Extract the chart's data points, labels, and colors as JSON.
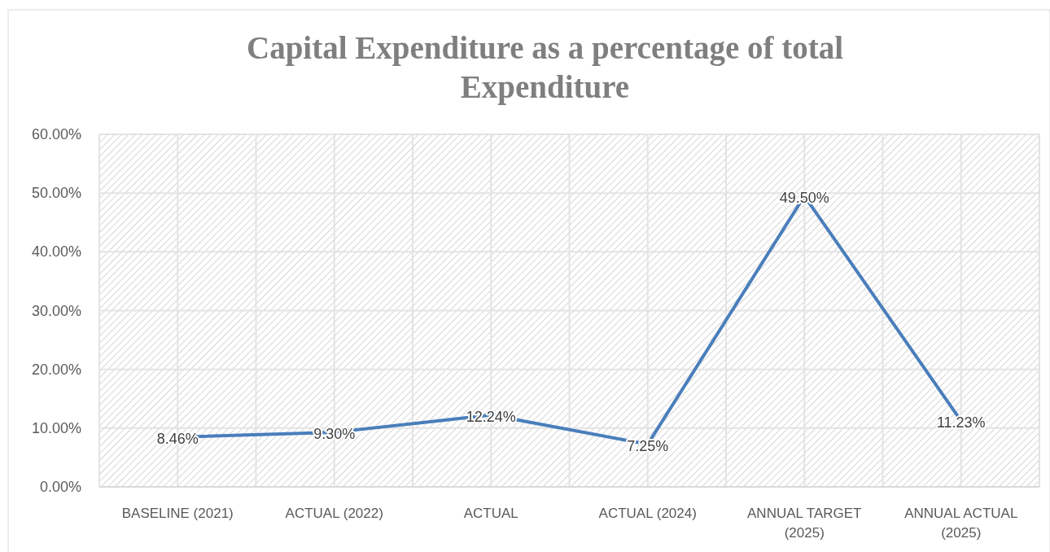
{
  "chart_data": {
    "type": "line",
    "title": "Capital Expenditure as a percentage of total Expenditure",
    "categories": [
      "BASELINE (2021)",
      "ACTUAL (2022)",
      "ACTUAL",
      "ACTUAL (2024)",
      "ANNUAL TARGET (2025)",
      "ANNUAL ACTUAL (2025)"
    ],
    "series": [
      {
        "color": "#4a7ebb",
        "values": [
          8.46,
          9.3,
          12.24,
          7.25,
          49.5,
          11.23
        ],
        "value_labels": [
          "8.46%",
          "9.30%",
          "12.24%",
          "7.25%",
          "49.50%",
          "11.23%"
        ]
      }
    ],
    "ylim": [
      0,
      60
    ],
    "yticks": [
      {
        "value": 0,
        "label": "0.00%"
      },
      {
        "value": 10,
        "label": "10.00%"
      },
      {
        "value": 20,
        "label": "20.00%"
      },
      {
        "value": 30,
        "label": "30.00%"
      },
      {
        "value": 40,
        "label": "40.00%"
      },
      {
        "value": 50,
        "label": "50.00%"
      },
      {
        "value": 60,
        "label": "60.00%"
      }
    ],
    "grid": true,
    "marker": "none",
    "line_style": "solid"
  }
}
